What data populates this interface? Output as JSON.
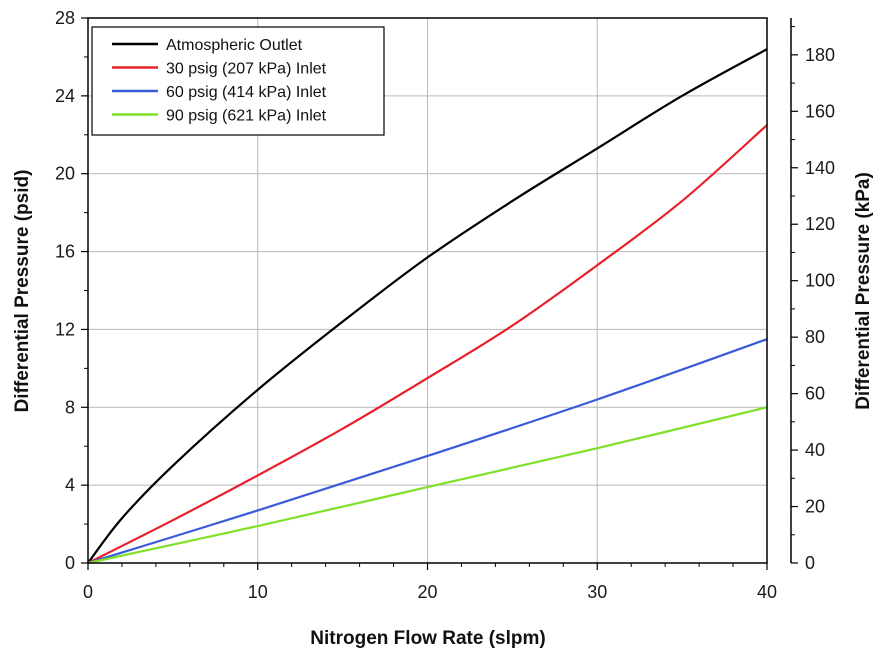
{
  "chart_data": {
    "type": "line",
    "title": "",
    "xlabel": "Nitrogen Flow Rate (slpm)",
    "ylabel": "Differential Pressure (psid)",
    "y2label": "Differential Pressure (kPa)",
    "xlim": [
      0,
      40
    ],
    "ylim": [
      0,
      28
    ],
    "y2lim": [
      0,
      193.05
    ],
    "x_ticks": [
      0,
      10,
      20,
      30,
      40
    ],
    "y_ticks": [
      0,
      4,
      8,
      12,
      16,
      20,
      24,
      28
    ],
    "y2_ticks": [
      0,
      20,
      40,
      60,
      80,
      100,
      120,
      140,
      160,
      180
    ],
    "grid": true,
    "legend_position": "top-left",
    "series": [
      {
        "name": "Atmospheric Outlet",
        "color": "#000000",
        "x": [
          0,
          2,
          5,
          10,
          15,
          20,
          25,
          30,
          35,
          40
        ],
        "y": [
          0,
          2.3,
          5.0,
          8.9,
          12.4,
          15.7,
          18.6,
          21.3,
          24.0,
          26.4
        ]
      },
      {
        "name": "30 psig (207 kPa) Inlet",
        "color": "#e8202a",
        "x": [
          0,
          5,
          10,
          15,
          20,
          25,
          30,
          35,
          40
        ],
        "y": [
          0,
          2.2,
          4.5,
          6.9,
          9.5,
          12.2,
          15.3,
          18.6,
          22.5
        ]
      },
      {
        "name": "60 psig (414 kPa) Inlet",
        "color": "#3a5bd9",
        "x": [
          0,
          10,
          20,
          30,
          40
        ],
        "y": [
          0,
          2.7,
          5.5,
          8.4,
          11.5
        ]
      },
      {
        "name": "90 psig (621 kPa) Inlet",
        "color": "#7fe02a",
        "x": [
          0,
          10,
          20,
          30,
          40
        ],
        "y": [
          0,
          1.9,
          3.9,
          5.9,
          8.0
        ]
      }
    ]
  }
}
